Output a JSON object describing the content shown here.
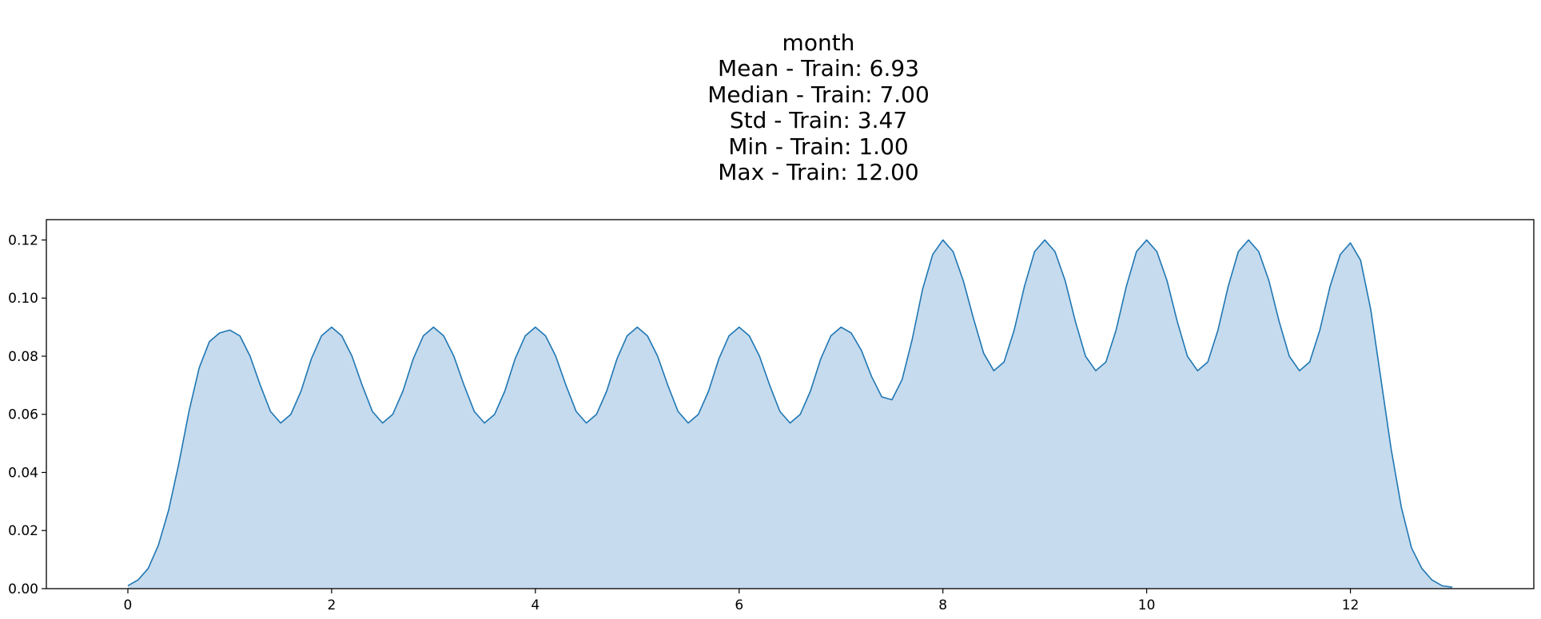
{
  "chart_data": {
    "type": "area",
    "title_lines": [
      "month",
      "Mean - Train: 6.93",
      "Median - Train: 7.00",
      "Std - Train: 3.47",
      "Min - Train: 1.00",
      "Max - Train: 12.00"
    ],
    "xlabel": "",
    "ylabel": "",
    "xlim": [
      -0.8,
      13.8
    ],
    "ylim": [
      0,
      0.127
    ],
    "xticks": [
      0,
      2,
      4,
      6,
      8,
      10,
      12
    ],
    "xtick_labels": [
      "0",
      "2",
      "4",
      "6",
      "8",
      "10",
      "12"
    ],
    "yticks": [
      0.0,
      0.02,
      0.04,
      0.06,
      0.08,
      0.1,
      0.12
    ],
    "ytick_labels": [
      "0.00",
      "0.02",
      "0.04",
      "0.06",
      "0.08",
      "0.10",
      "0.12"
    ],
    "grid": false,
    "legend": null,
    "line_color": "#1f77b4",
    "fill_color": "#c6dbed",
    "series": [
      {
        "x": [
          0.0,
          0.1,
          0.2,
          0.3,
          0.4,
          0.5,
          0.6,
          0.7,
          0.8,
          0.9,
          1.0,
          1.1,
          1.2,
          1.3,
          1.4,
          1.5,
          1.6,
          1.7,
          1.8,
          1.9,
          2.0,
          2.1,
          2.2,
          2.3,
          2.4,
          2.5,
          2.6,
          2.7,
          2.8,
          2.9,
          3.0,
          3.1,
          3.2,
          3.3,
          3.4,
          3.5,
          3.6,
          3.7,
          3.8,
          3.9,
          4.0,
          4.1,
          4.2,
          4.3,
          4.4,
          4.5,
          4.6,
          4.7,
          4.8,
          4.9,
          5.0,
          5.1,
          5.2,
          5.3,
          5.4,
          5.5,
          5.6,
          5.7,
          5.8,
          5.9,
          6.0,
          6.1,
          6.2,
          6.3,
          6.4,
          6.5,
          6.6,
          6.7,
          6.8,
          6.9,
          7.0,
          7.1,
          7.2,
          7.3,
          7.4,
          7.5,
          7.6,
          7.7,
          7.8,
          7.9,
          8.0,
          8.1,
          8.2,
          8.3,
          8.4,
          8.5,
          8.6,
          8.7,
          8.8,
          8.9,
          9.0,
          9.1,
          9.2,
          9.3,
          9.4,
          9.5,
          9.6,
          9.7,
          9.8,
          9.9,
          10.0,
          10.1,
          10.2,
          10.3,
          10.4,
          10.5,
          10.6,
          10.7,
          10.8,
          10.9,
          11.0,
          11.1,
          11.2,
          11.3,
          11.4,
          11.5,
          11.6,
          11.7,
          11.8,
          11.9,
          12.0,
          12.1,
          12.2,
          12.3,
          12.4,
          12.5,
          12.6,
          12.7,
          12.8,
          12.9,
          13.0
        ],
        "y": [
          0.001,
          0.003,
          0.007,
          0.015,
          0.027,
          0.043,
          0.061,
          0.076,
          0.085,
          0.088,
          0.089,
          0.087,
          0.08,
          0.07,
          0.061,
          0.057,
          0.06,
          0.068,
          0.079,
          0.087,
          0.09,
          0.087,
          0.08,
          0.07,
          0.061,
          0.057,
          0.06,
          0.068,
          0.079,
          0.087,
          0.09,
          0.087,
          0.08,
          0.07,
          0.061,
          0.057,
          0.06,
          0.068,
          0.079,
          0.087,
          0.09,
          0.087,
          0.08,
          0.07,
          0.061,
          0.057,
          0.06,
          0.068,
          0.079,
          0.087,
          0.09,
          0.087,
          0.08,
          0.07,
          0.061,
          0.057,
          0.06,
          0.068,
          0.079,
          0.087,
          0.09,
          0.087,
          0.08,
          0.07,
          0.061,
          0.057,
          0.06,
          0.068,
          0.079,
          0.087,
          0.09,
          0.088,
          0.082,
          0.073,
          0.066,
          0.065,
          0.072,
          0.086,
          0.103,
          0.115,
          0.12,
          0.116,
          0.106,
          0.093,
          0.081,
          0.075,
          0.078,
          0.089,
          0.104,
          0.116,
          0.12,
          0.116,
          0.106,
          0.092,
          0.08,
          0.075,
          0.078,
          0.089,
          0.104,
          0.116,
          0.12,
          0.116,
          0.106,
          0.092,
          0.08,
          0.075,
          0.078,
          0.089,
          0.104,
          0.116,
          0.12,
          0.116,
          0.106,
          0.092,
          0.08,
          0.075,
          0.078,
          0.089,
          0.104,
          0.115,
          0.119,
          0.113,
          0.096,
          0.072,
          0.048,
          0.028,
          0.014,
          0.007,
          0.003,
          0.001,
          0.0005
        ]
      }
    ]
  }
}
